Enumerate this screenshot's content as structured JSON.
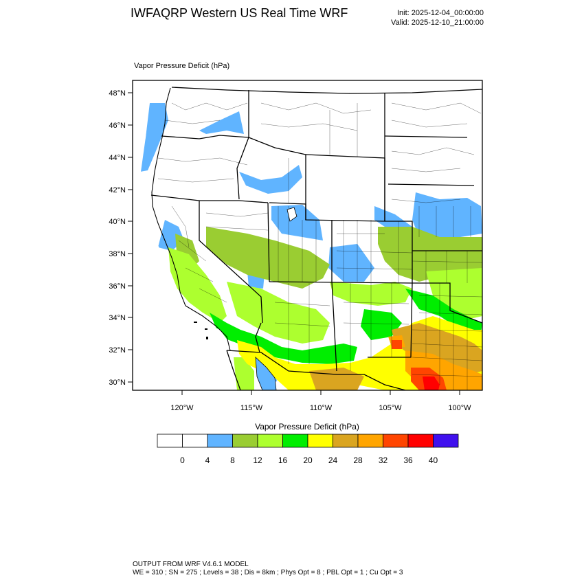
{
  "header": {
    "title": "IWFAQRP Western US Real Time WRF",
    "init": "Init: 2025-12-04_00:00:00",
    "valid": "Valid: 2025-12-10_21:00:00"
  },
  "field_label": "Vapor Pressure Deficit   (hPa)",
  "map": {
    "lat_ticks": [
      "48°N",
      "46°N",
      "44°N",
      "42°N",
      "40°N",
      "38°N",
      "36°N",
      "34°N",
      "32°N",
      "30°N"
    ],
    "lon_ticks": [
      "120°W",
      "115°W",
      "110°W",
      "105°W",
      "100°W"
    ]
  },
  "colorbar": {
    "title": "Vapor Pressure Deficit  (hPa)",
    "colors": [
      "#ffffff",
      "#ffffff",
      "#60b4ff",
      "#9acd32",
      "#adff2f",
      "#00ee00",
      "#ffff00",
      "#daa520",
      "#ffa500",
      "#ff4500",
      "#ff0000",
      "#4010ee"
    ],
    "labels": [
      "0",
      "4",
      "8",
      "12",
      "16",
      "20",
      "24",
      "28",
      "32",
      "36",
      "40"
    ]
  },
  "footer": {
    "line1": "OUTPUT FROM WRF V4.6.1 MODEL",
    "line2": "WE = 310 ; SN = 275 ; Levels = 38 ; Dis = 8km ; Phys Opt = 8 ; PBL Opt = 1 ; Cu Opt = 3"
  }
}
